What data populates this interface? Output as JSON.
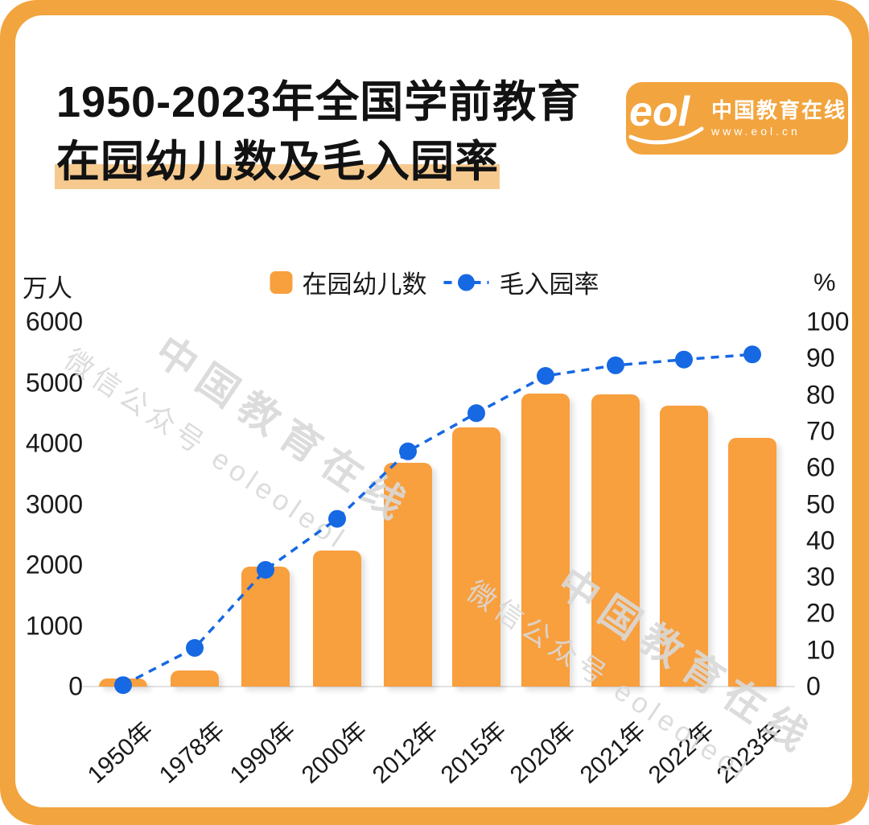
{
  "colors": {
    "accent-orange": "#F2A43E",
    "bar-orange": "#F89F3E",
    "line-blue": "#1668E3",
    "title-highlight": "#F6CA8F",
    "watermark-gray": "#D9D9D9"
  },
  "title": {
    "line1": "1950-2023年全国学前教育",
    "line2": "在园幼儿数及毛入园率"
  },
  "logo": {
    "wordmark": "eol",
    "name": "中国教育在线",
    "url": "www.eol.cn"
  },
  "watermark": {
    "brand": "中国教育在线",
    "account": "微信公众号 eoleoleol"
  },
  "legend": {
    "bar_label": "在园幼儿数",
    "line_label": "毛入园率"
  },
  "axes": {
    "left_unit": "万人",
    "right_unit": "%"
  },
  "chart_data": {
    "type": "bar+line",
    "title": "1950-2023年全国学前教育在园幼儿数及毛入园率",
    "categories": [
      "1950年",
      "1978年",
      "1990年",
      "2000年",
      "2012年",
      "2015年",
      "2020年",
      "2021年",
      "2022年",
      "2023年"
    ],
    "series": [
      {
        "name": "在园幼儿数",
        "type": "bar",
        "axis": "left",
        "unit": "万人",
        "values": [
          14,
          260,
          1972,
          2244,
          3686,
          4265,
          4818,
          4805,
          4628,
          4093
        ]
      },
      {
        "name": "毛入园率",
        "type": "line",
        "axis": "right",
        "unit": "%",
        "values": [
          0.4,
          10.6,
          32,
          46,
          64.5,
          75,
          85.2,
          88.1,
          89.7,
          91.1
        ]
      }
    ],
    "left_axis": {
      "unit": "万人",
      "range": [
        0,
        6000
      ],
      "ticks": [
        6000,
        5000,
        4000,
        3000,
        2000,
        1000,
        0
      ]
    },
    "right_axis": {
      "unit": "%",
      "range": [
        0,
        100
      ],
      "ticks": [
        100,
        90,
        80,
        70,
        60,
        50,
        40,
        30,
        20,
        10,
        0
      ]
    },
    "grid": false,
    "legend_position": "top-center"
  }
}
